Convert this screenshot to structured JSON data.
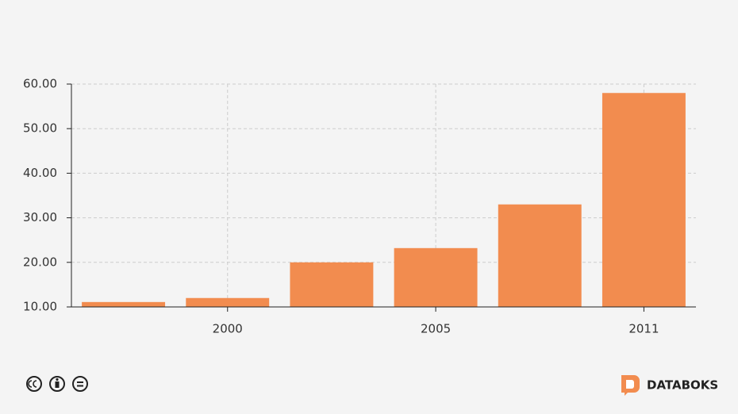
{
  "chart_data": {
    "type": "bar",
    "categories": [
      null,
      "2000",
      null,
      "2005",
      null,
      "2011"
    ],
    "values": [
      11.1,
      12,
      20,
      23.2,
      33,
      58.0
    ],
    "color": "#f28c4f",
    "ylim": [
      10,
      60
    ],
    "yticks": [
      {
        "value": 10,
        "label": "10.00"
      },
      {
        "value": 20,
        "label": "20.00"
      },
      {
        "value": 30,
        "label": "30.00"
      },
      {
        "value": 40,
        "label": "40.00"
      },
      {
        "value": 50,
        "label": "50.00"
      },
      {
        "value": 60,
        "label": "60.00"
      }
    ],
    "grid": true
  },
  "brand": "DATABOKS"
}
